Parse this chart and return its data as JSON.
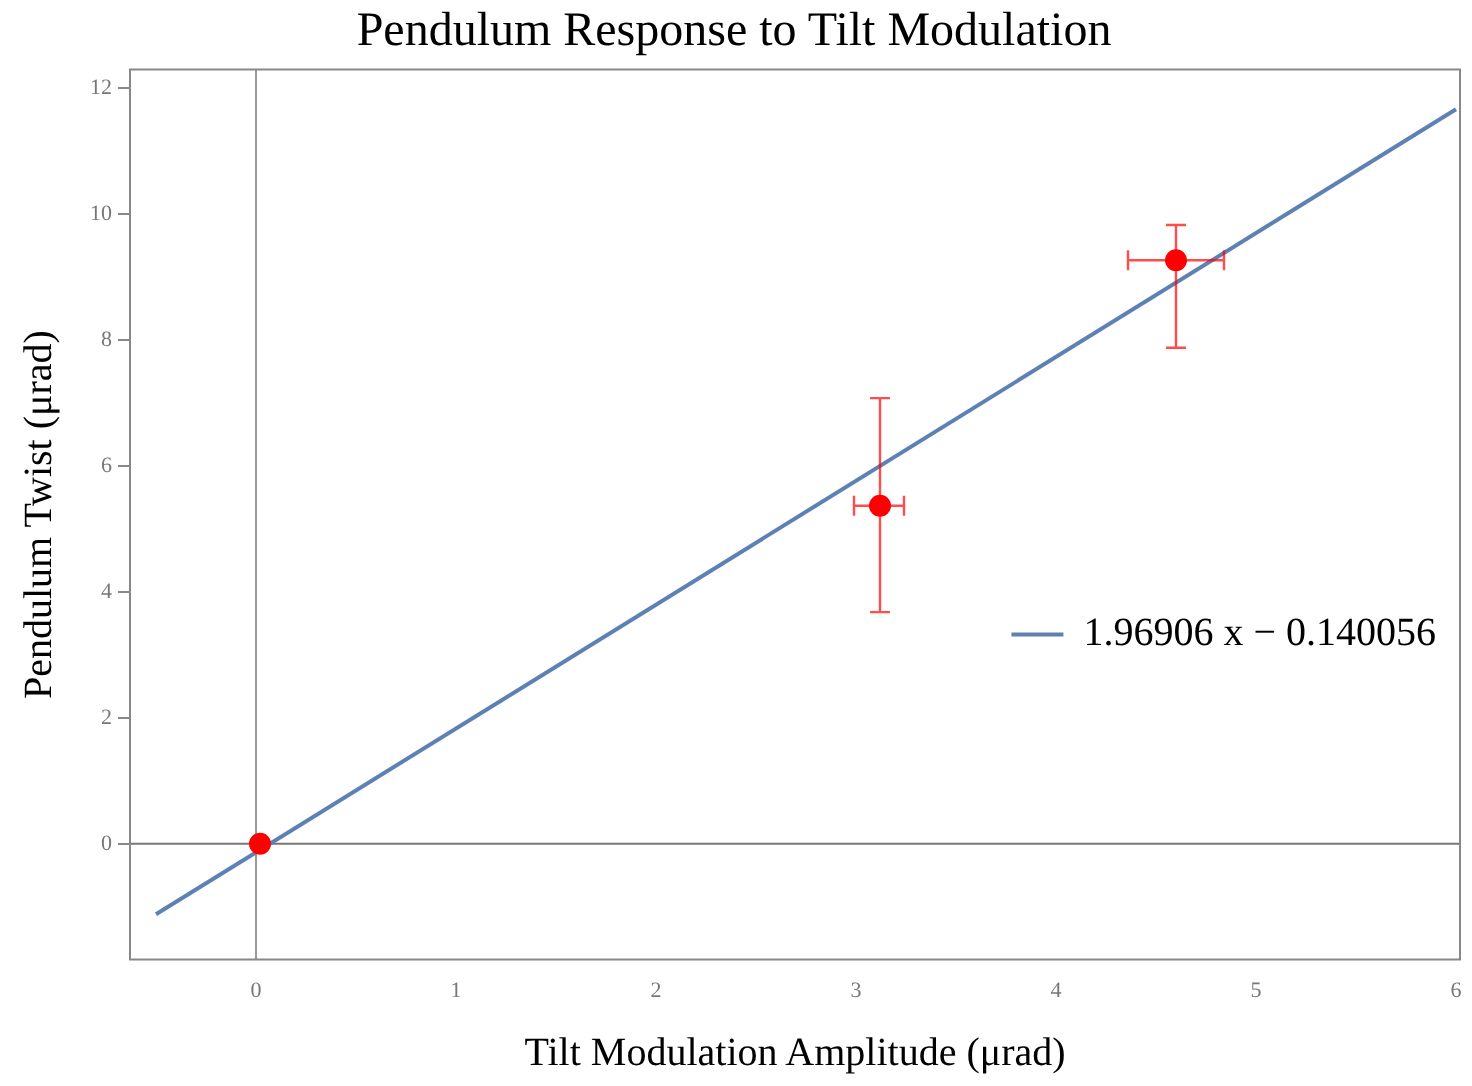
{
  "chart_data": {
    "type": "scatter",
    "title": "Pendulum Response to Tilt Modulation",
    "xlabel": "Tilt Modulation Amplitude (μrad)",
    "ylabel": "Pendulum Twist (μrad)",
    "xlim": [
      -0.63,
      6.02
    ],
    "xticks": [
      0,
      1,
      2,
      3,
      4,
      5,
      6
    ],
    "ylim": [
      -1.84,
      12.3
    ],
    "yticks": [
      0,
      2,
      4,
      6,
      8,
      10,
      12
    ],
    "grid": false,
    "legend": "right",
    "series": [
      {
        "marker": "circle",
        "color": "#ff0000",
        "x": [
          0.02,
          3.12,
          4.6
        ],
        "values": [
          0,
          5.37,
          9.27
        ],
        "errors": [
          null,
          [
            3.68,
            7.08
          ],
          [
            7.88,
            9.83
          ]
        ],
        "xerrors": [
          null,
          [
            2.99,
            3.24
          ],
          [
            4.36,
            4.84
          ]
        ]
      },
      {
        "type": "line",
        "marker": "none",
        "name": "1.96906 x − 0.140056",
        "color": "#5e81b5",
        "x": [
          -0.5,
          6
        ],
        "values": [
          -1.12,
          11.67
        ]
      }
    ],
    "ref_lines": [
      {
        "axis": "x",
        "value": 0,
        "color": "#999999"
      },
      {
        "axis": "y",
        "value": 0,
        "color": "#777777"
      }
    ]
  }
}
